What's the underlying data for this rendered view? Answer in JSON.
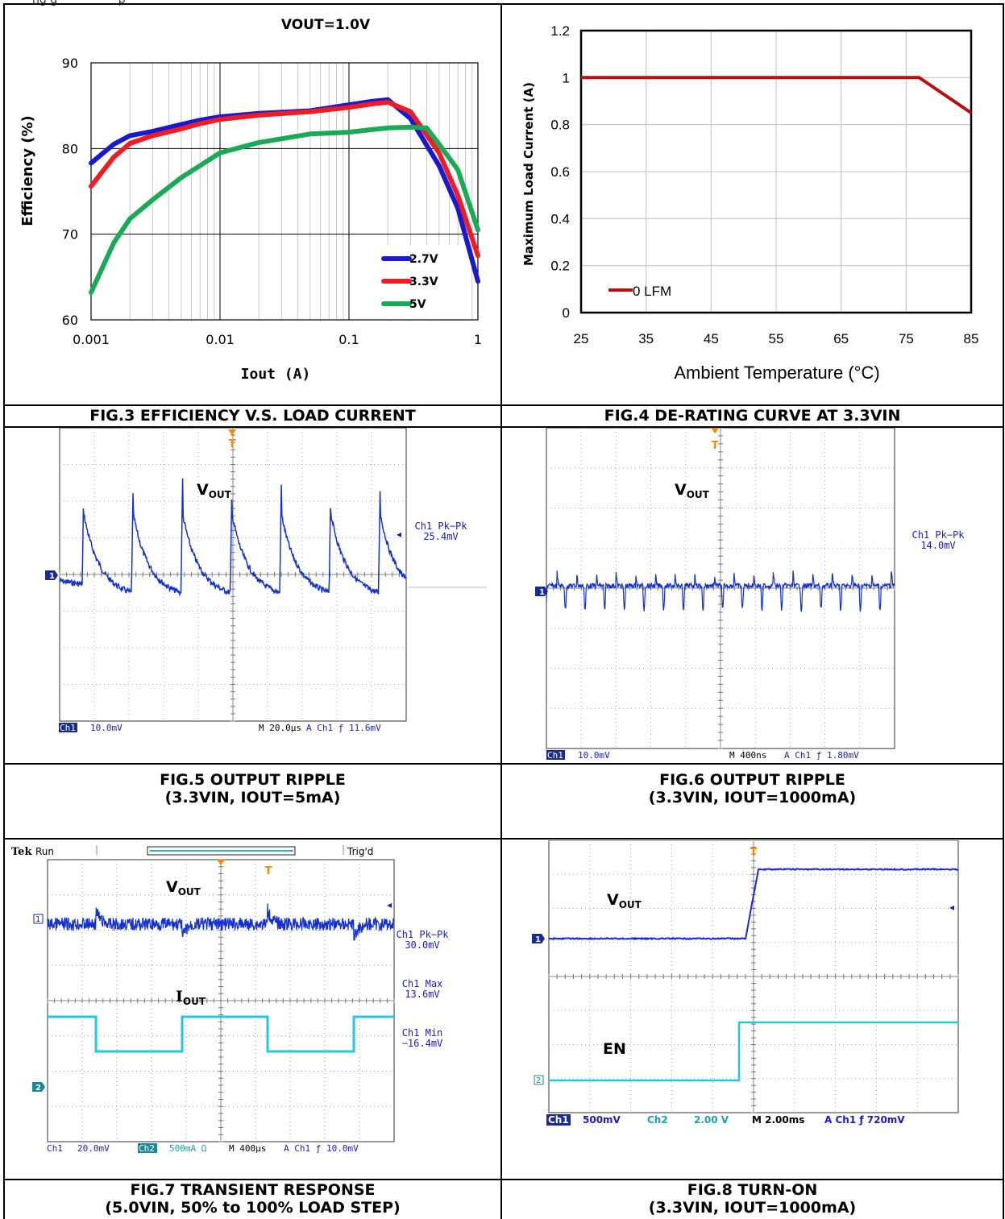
{
  "header_partial": "ng g                 p",
  "fig3": {
    "caption": "FIG.3 EFFICIENCY V.S. LOAD CURRENT",
    "title": "VOUT=1.0V",
    "chart_data": {
      "type": "line",
      "title": "VOUT=1.0V",
      "xlabel": "Iout (A)",
      "ylabel": "Efficiency (%)",
      "x_scale": "log",
      "xlim": [
        0.001,
        1
      ],
      "ylim": [
        60,
        90
      ],
      "x_ticks": [
        "0.001",
        "0.01",
        "0.1",
        "1"
      ],
      "y_ticks": [
        "60",
        "70",
        "80",
        "90"
      ],
      "legend_position": "bottom-right",
      "series": [
        {
          "name": "2.7V",
          "color": "#1a1acc",
          "x": [
            0.001,
            0.0015,
            0.002,
            0.003,
            0.005,
            0.007,
            0.01,
            0.02,
            0.05,
            0.1,
            0.15,
            0.2,
            0.3,
            0.5,
            0.7,
            1.0
          ],
          "y": [
            78.3,
            80.5,
            81.5,
            82.0,
            82.8,
            83.3,
            83.7,
            84.1,
            84.4,
            85.1,
            85.5,
            85.7,
            83.5,
            78.0,
            73.0,
            64.5
          ]
        },
        {
          "name": "3.3V",
          "color": "#ee1c24",
          "x": [
            0.001,
            0.0015,
            0.002,
            0.003,
            0.005,
            0.007,
            0.01,
            0.02,
            0.05,
            0.1,
            0.15,
            0.2,
            0.3,
            0.5,
            0.7,
            1.0
          ],
          "y": [
            75.6,
            79.0,
            80.6,
            81.5,
            82.3,
            82.9,
            83.4,
            83.9,
            84.3,
            84.8,
            85.2,
            85.4,
            84.3,
            79.5,
            74.5,
            67.5
          ]
        },
        {
          "name": "5V",
          "color": "#1aaa55",
          "x": [
            0.001,
            0.0015,
            0.002,
            0.003,
            0.005,
            0.007,
            0.01,
            0.02,
            0.05,
            0.07,
            0.1,
            0.15,
            0.2,
            0.3,
            0.4,
            0.5,
            0.7,
            1.0
          ],
          "y": [
            63.2,
            69.0,
            71.8,
            74.0,
            76.6,
            78.0,
            79.5,
            80.7,
            81.7,
            81.8,
            81.9,
            82.2,
            82.4,
            82.5,
            82.4,
            80.5,
            77.5,
            70.5
          ]
        }
      ]
    }
  },
  "fig4": {
    "caption": "FIG.4 DE-RATING CURVE AT 3.3VIN",
    "chart_data": {
      "type": "line",
      "xlabel": "Ambient  Temperature (°C)",
      "ylabel": "Maximum  Load Current (A)",
      "xlim": [
        25,
        85
      ],
      "ylim": [
        0,
        1.2
      ],
      "x_ticks": [
        "25",
        "35",
        "45",
        "55",
        "65",
        "75",
        "85"
      ],
      "y_ticks": [
        "0",
        "0.2",
        "0.4",
        "0.6",
        "0.8",
        "1",
        "1.2"
      ],
      "legend_position": "bottom-left",
      "series": [
        {
          "name": "0 LFM",
          "color": "#b50f0f",
          "x": [
            25,
            77,
            85
          ],
          "y": [
            1.0,
            1.0,
            0.85
          ]
        }
      ]
    }
  },
  "fig5": {
    "caption_line1": "FIG.5 OUTPUT RIPPLE",
    "caption_line2": "(3.3VIN, IOUT=5mA)",
    "label_main": "V",
    "label_sub": "OUT",
    "meas_line1": "Ch1 Pk−Pk",
    "meas_line2": "25.4mV",
    "status": {
      "ch": "Ch1",
      "scale": "10.0mV",
      "time": "M 20.0µs",
      "trig": "A  Ch1  ƒ  11.6mV"
    }
  },
  "fig6": {
    "caption_line1": "FIG.6 OUTPUT RIPPLE",
    "caption_line2": "(3.3VIN, IOUT=1000mA)",
    "label_main": "V",
    "label_sub": "OUT",
    "meas_line1": "Ch1 Pk−Pk",
    "meas_line2": "14.0mV",
    "status": {
      "ch": "Ch1",
      "scale": "10.0mV",
      "time": "M 400ns",
      "trig": "A  Ch1  ƒ  1.80mV"
    }
  },
  "fig7": {
    "caption_line1": "FIG.7 TRANSIENT RESPONSE",
    "caption_line2": "(5.0VIN, 50% to 100% LOAD STEP)",
    "tek": "Tek",
    "run": "Run",
    "trigd": "Trig'd",
    "label1_main": "V",
    "label1_sub": "OUT",
    "label2_main": "I",
    "label2_sub": "OUT",
    "m1a": "Ch1 Pk−Pk",
    "m1b": "30.0mV",
    "m2a": "Ch1 Max",
    "m2b": "13.6mV",
    "m3a": "Ch1 Min",
    "m3b": "−16.4mV",
    "status": {
      "ch1": "Ch1",
      "s1": "20.0mV",
      "ch2": "Ch2",
      "s2": "500mA Ω",
      "time": "M 400µs",
      "trig": "A  Ch1  ƒ  10.0mV"
    }
  },
  "fig8": {
    "caption_line1": "FIG.8 TURN-ON",
    "caption_line2": "(3.3VIN, IOUT=1000mA)",
    "label1_main": "V",
    "label1_sub": "OUT",
    "label2": "EN",
    "status": {
      "ch1": "Ch1",
      "s1": "500mV",
      "ch2": "Ch2",
      "s2": "2.00 V",
      "time": "M 2.00ms",
      "trig": "A  Ch1  ƒ  720mV"
    }
  }
}
